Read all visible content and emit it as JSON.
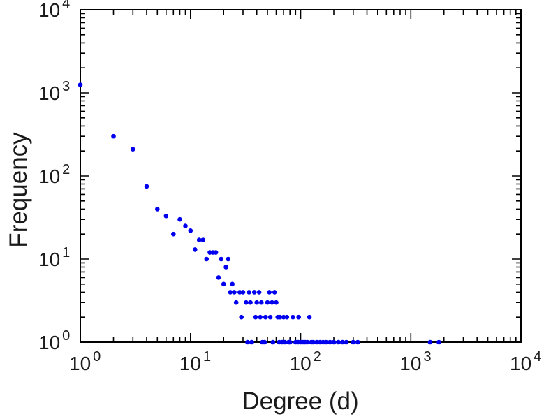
{
  "chart_data": {
    "type": "scatter",
    "title": "",
    "xlabel": "Degree (d)",
    "ylabel": "Frequency",
    "xscale": "log",
    "yscale": "log",
    "xlim": [
      1,
      10000
    ],
    "ylim": [
      1,
      10000
    ],
    "x_tick_exponents": [
      0,
      1,
      2,
      3,
      4
    ],
    "y_tick_exponents": [
      0,
      1,
      2,
      3,
      4
    ],
    "x_tick_labels": [
      "10^0",
      "10^1",
      "10^2",
      "10^3",
      "10^4"
    ],
    "y_tick_labels": [
      "10^0",
      "10^1",
      "10^2",
      "10^3",
      "10^4"
    ],
    "grid": false,
    "legend": false,
    "marker": {
      "shape": "circle",
      "color": "#0000ee",
      "radius_px": 3.3
    },
    "axis_color": "#000000",
    "text_color": "#1a1a1a",
    "background": "#ffffff",
    "points": [
      [
        1,
        1250
      ],
      [
        2,
        300
      ],
      [
        3,
        210
      ],
      [
        4,
        75
      ],
      [
        5,
        40
      ],
      [
        6,
        33
      ],
      [
        7,
        20
      ],
      [
        8,
        30
      ],
      [
        9,
        25
      ],
      [
        10,
        22
      ],
      [
        11,
        13
      ],
      [
        12,
        17
      ],
      [
        13,
        17
      ],
      [
        14,
        10
      ],
      [
        15,
        12
      ],
      [
        16,
        12
      ],
      [
        17,
        12
      ],
      [
        18,
        6
      ],
      [
        19,
        10
      ],
      [
        20,
        5
      ],
      [
        21,
        8
      ],
      [
        22,
        10
      ],
      [
        23,
        4
      ],
      [
        24,
        5
      ],
      [
        25,
        4
      ],
      [
        26,
        3
      ],
      [
        28,
        4
      ],
      [
        29,
        2
      ],
      [
        30,
        4
      ],
      [
        32,
        3
      ],
      [
        33,
        1
      ],
      [
        34,
        4
      ],
      [
        35,
        3
      ],
      [
        36,
        1
      ],
      [
        38,
        4
      ],
      [
        39,
        2
      ],
      [
        40,
        3
      ],
      [
        42,
        4
      ],
      [
        43,
        2
      ],
      [
        44,
        3
      ],
      [
        45,
        1
      ],
      [
        47,
        1
      ],
      [
        48,
        2
      ],
      [
        50,
        3
      ],
      [
        52,
        4
      ],
      [
        53,
        2
      ],
      [
        55,
        3
      ],
      [
        56,
        1
      ],
      [
        58,
        4
      ],
      [
        60,
        3
      ],
      [
        62,
        2
      ],
      [
        64,
        1
      ],
      [
        65,
        2
      ],
      [
        68,
        1
      ],
      [
        70,
        2
      ],
      [
        72,
        1
      ],
      [
        75,
        2
      ],
      [
        78,
        1
      ],
      [
        80,
        1
      ],
      [
        85,
        2
      ],
      [
        90,
        1
      ],
      [
        95,
        1
      ],
      [
        96,
        2
      ],
      [
        100,
        1
      ],
      [
        105,
        1
      ],
      [
        110,
        1
      ],
      [
        115,
        1
      ],
      [
        120,
        2
      ],
      [
        125,
        1
      ],
      [
        130,
        1
      ],
      [
        140,
        1
      ],
      [
        150,
        1
      ],
      [
        160,
        1
      ],
      [
        170,
        1
      ],
      [
        185,
        1
      ],
      [
        200,
        1
      ],
      [
        220,
        1
      ],
      [
        240,
        1
      ],
      [
        260,
        1
      ],
      [
        300,
        1
      ],
      [
        330,
        1
      ],
      [
        1500,
        1
      ],
      [
        1800,
        1
      ]
    ]
  }
}
